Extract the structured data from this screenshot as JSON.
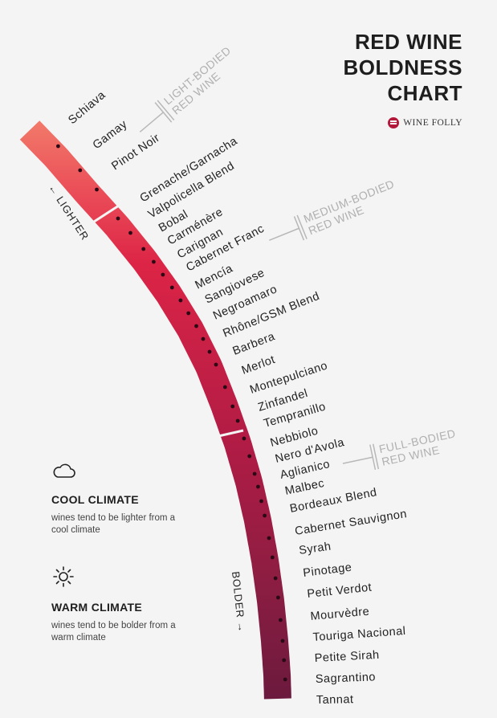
{
  "title": {
    "line1": "RED WINE",
    "line2": "BOLDNESS",
    "line3": "CHART"
  },
  "brand": "WINE FOLLY",
  "categories": [
    {
      "line1": "LIGHT-BODIED",
      "line2": "RED WINE"
    },
    {
      "line1": "MEDIUM-BODIED",
      "line2": "RED WINE"
    },
    {
      "line1": "FULL-BODIED",
      "line2": "RED WINE"
    }
  ],
  "arrows": {
    "lighter": "← LIGHTER",
    "bolder": "BOLDER →"
  },
  "wines": [
    "Schiava",
    "Gamay",
    "Pinot Noir",
    "Grenache/Garnacha",
    "Valpolicella Blend",
    "Bobal",
    "Carménère",
    "Carignan",
    "Cabernet Franc",
    "Mencía",
    "Sangiovese",
    "Negroamaro",
    "Rhône/GSM Blend",
    "Barbera",
    "Merlot",
    "Montepulciano",
    "Zinfandel",
    "Tempranillo",
    "Nebbiolo",
    "Nero d'Avola",
    "Aglianico",
    "Malbec",
    "Bordeaux Blend",
    "Cabernet Sauvignon",
    "Syrah",
    "Pinotage",
    "Petit Verdot",
    "Mourvèdre",
    "Touriga Nacional",
    "Petite Sirah",
    "Sagrantino",
    "Tannat"
  ],
  "climate": {
    "cool": {
      "icon": "cloud-icon",
      "heading": "COOL CLIMATE",
      "text": "wines tend to be lighter from a cool climate"
    },
    "warm": {
      "icon": "sun-icon",
      "heading": "WARM CLIMATE",
      "text": "wines tend to be bolder from a warm climate"
    }
  },
  "colors": {
    "light": "#f27a6a",
    "mid": "#e02a48",
    "bold": "#6e1a3e",
    "accent_gray": "#b8b8b8"
  }
}
